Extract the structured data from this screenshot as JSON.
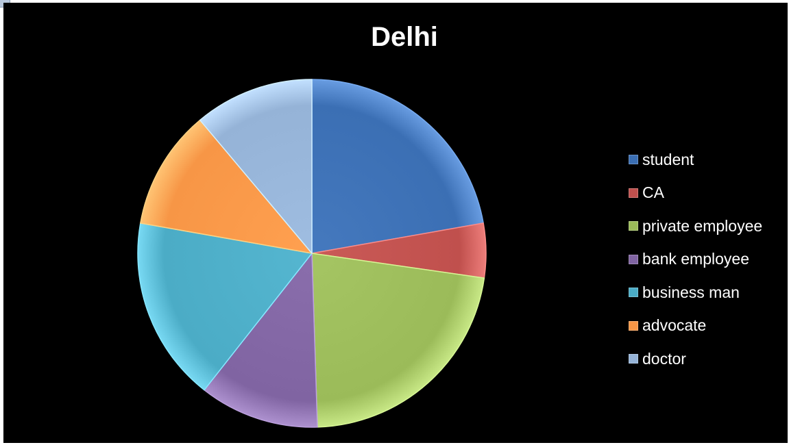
{
  "chart_data": {
    "type": "pie",
    "title": "Delhi",
    "series": [
      {
        "name": "student",
        "value": 22,
        "color": "#3b6fb4"
      },
      {
        "name": "CA",
        "value": 5,
        "color": "#c0504d"
      },
      {
        "name": "private employee",
        "value": 22,
        "color": "#9bbb59"
      },
      {
        "name": "bank employee",
        "value": 11,
        "color": "#8064a2"
      },
      {
        "name": "business man",
        "value": 17,
        "color": "#4bacc6"
      },
      {
        "name": "advocate",
        "value": 11,
        "color": "#f79646"
      },
      {
        "name": "doctor",
        "value": 11,
        "color": "#95b3d7"
      }
    ],
    "legend_position": "right"
  }
}
